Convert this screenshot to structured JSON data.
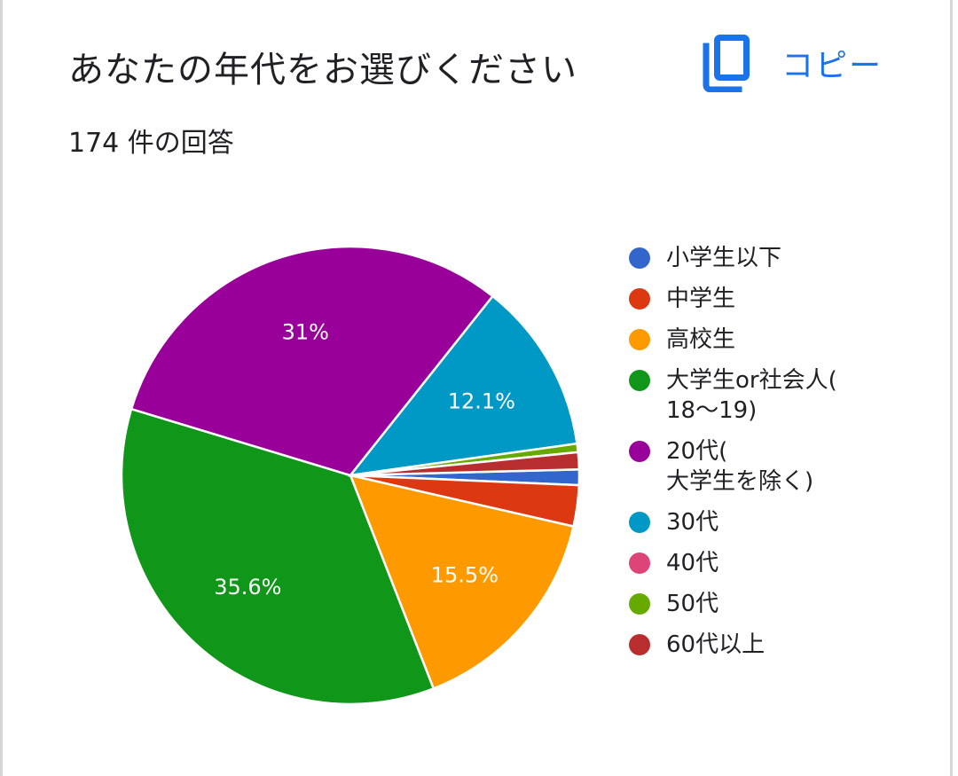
{
  "header": {
    "title": "あなたの年代をお選びください",
    "copy_label": "コピー",
    "copy_icon": "copy-icon",
    "accent_color": "#1a73e8"
  },
  "summary": {
    "responses": "174 件の回答"
  },
  "chart_data": {
    "type": "pie",
    "legend_position": "right",
    "slices": [
      {
        "label": "小学生以下",
        "value": 1.1,
        "color": "#3366cc",
        "display": ""
      },
      {
        "label": "中学生",
        "value": 2.9,
        "color": "#dc3912",
        "display": ""
      },
      {
        "label": "高校生",
        "value": 15.5,
        "color": "#ff9900",
        "display": "15.5%"
      },
      {
        "label": "大学生or社会人(\n18〜19)",
        "value": 35.6,
        "color": "#109618",
        "display": "35.6%"
      },
      {
        "label": "20代(\n大学生を除く)",
        "value": 31,
        "color": "#990099",
        "display": "31%"
      },
      {
        "label": "30代",
        "value": 12.1,
        "color": "#0099c6",
        "display": "12.1%"
      },
      {
        "label": "40代",
        "value": 0,
        "color": "#dd4477",
        "display": ""
      },
      {
        "label": "50代",
        "value": 0.6,
        "color": "#66aa00",
        "display": ""
      },
      {
        "label": "60代以上",
        "value": 1.2,
        "color": "#b82e2e",
        "display": ""
      }
    ]
  }
}
